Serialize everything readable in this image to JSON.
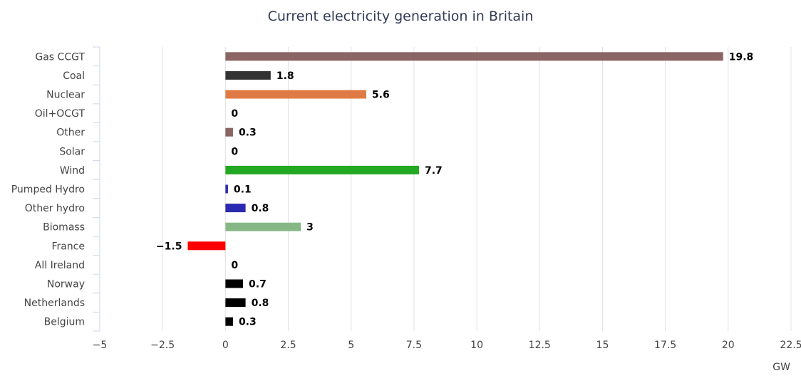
{
  "chart_data": {
    "type": "bar",
    "orientation": "horizontal",
    "title": "Current electricity generation in Britain",
    "xlabel": "GW",
    "ylabel": "",
    "xlim": [
      -5,
      22.5
    ],
    "x_ticks": [
      -5,
      -2.5,
      0,
      2.5,
      5,
      7.5,
      10,
      12.5,
      15,
      17.5,
      20,
      22.5
    ],
    "x_tick_labels": [
      "−5",
      "−2.5",
      "0",
      "2.5",
      "5",
      "7.5",
      "10",
      "12.5",
      "15",
      "17.5",
      "20",
      "22.5"
    ],
    "grid": true,
    "categories": [
      "Gas CCGT",
      "Coal",
      "Nuclear",
      "Oil+OCGT",
      "Other",
      "Solar",
      "Wind",
      "Pumped Hydro",
      "Other hydro",
      "Biomass",
      "France",
      "All Ireland",
      "Norway",
      "Netherlands",
      "Belgium"
    ],
    "values": [
      19.8,
      1.8,
      5.6,
      0,
      0.3,
      0,
      7.7,
      0.1,
      0.8,
      3,
      -1.5,
      0,
      0.7,
      0.8,
      0.3
    ],
    "value_labels": [
      "19.8",
      "1.8",
      "5.6",
      "0",
      "0.3",
      "0",
      "7.7",
      "0.1",
      "0.8",
      "3",
      "−1.5",
      "0",
      "0.7",
      "0.8",
      "0.3"
    ],
    "colors": [
      "#8b6464",
      "#333333",
      "#e07a45",
      "#888888",
      "#8b6464",
      "#f2d024",
      "#23a823",
      "#2a2ab0",
      "#2a2ab0",
      "#86b886",
      "#ff0000",
      "#333333",
      "#000000",
      "#000000",
      "#000000"
    ]
  }
}
